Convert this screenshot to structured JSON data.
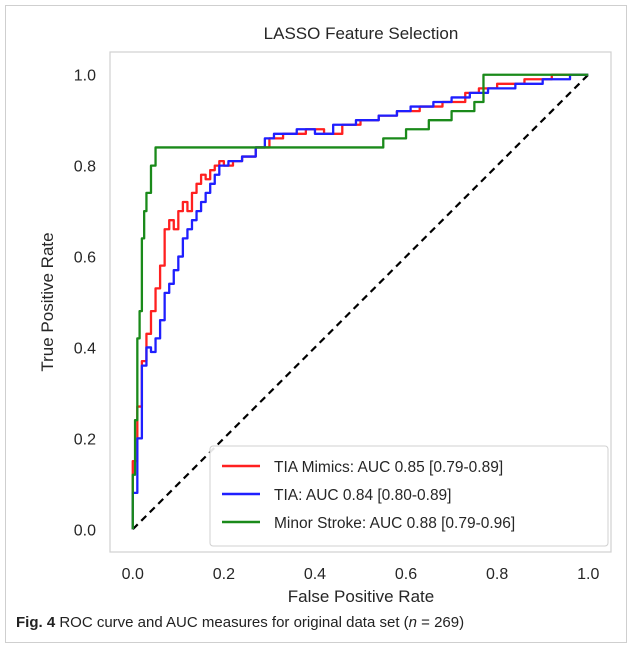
{
  "chart_data": {
    "type": "line",
    "title": "LASSO Feature Selection",
    "xlabel": "False Positive Rate",
    "ylabel": "True Positive Rate",
    "xlim": [
      -0.05,
      1.05
    ],
    "ylim": [
      -0.05,
      1.05
    ],
    "xticks": [
      "0.0",
      "0.2",
      "0.4",
      "0.6",
      "0.8",
      "1.0"
    ],
    "yticks": [
      "0.0",
      "0.2",
      "0.4",
      "0.6",
      "0.8",
      "1.0"
    ],
    "grid": false,
    "legend_position": "lower-right",
    "reference_line": {
      "style": "dashed",
      "color": "#000000",
      "x": [
        0,
        1
      ],
      "y": [
        0,
        1
      ]
    },
    "series": [
      {
        "name": "TIA Mimics: AUC 0.85 [0.79-0.89]",
        "color": "#ff2020",
        "x": [
          0,
          0,
          0.01,
          0.01,
          0.02,
          0.02,
          0.03,
          0.03,
          0.04,
          0.04,
          0.05,
          0.05,
          0.06,
          0.06,
          0.07,
          0.07,
          0.08,
          0.08,
          0.09,
          0.09,
          0.1,
          0.1,
          0.11,
          0.11,
          0.12,
          0.12,
          0.13,
          0.13,
          0.14,
          0.14,
          0.15,
          0.15,
          0.16,
          0.16,
          0.17,
          0.17,
          0.18,
          0.18,
          0.19,
          0.19,
          0.2,
          0.2,
          0.22,
          0.22,
          0.24,
          0.24,
          0.27,
          0.27,
          0.3,
          0.3,
          0.33,
          0.33,
          0.38,
          0.38,
          0.42,
          0.42,
          0.46,
          0.46,
          0.5,
          0.5,
          0.54,
          0.54,
          0.58,
          0.58,
          0.63,
          0.63,
          0.68,
          0.68,
          0.73,
          0.73,
          0.76,
          0.76,
          0.8,
          0.8,
          0.86,
          0.86,
          0.92,
          0.92,
          1.0
        ],
        "y": [
          0,
          0.15,
          0.15,
          0.27,
          0.27,
          0.37,
          0.37,
          0.43,
          0.43,
          0.48,
          0.48,
          0.53,
          0.53,
          0.58,
          0.58,
          0.66,
          0.66,
          0.68,
          0.68,
          0.66,
          0.66,
          0.7,
          0.7,
          0.72,
          0.72,
          0.7,
          0.7,
          0.74,
          0.74,
          0.76,
          0.76,
          0.78,
          0.78,
          0.77,
          0.77,
          0.79,
          0.79,
          0.8,
          0.8,
          0.81,
          0.81,
          0.8,
          0.8,
          0.81,
          0.81,
          0.82,
          0.82,
          0.84,
          0.84,
          0.86,
          0.86,
          0.87,
          0.87,
          0.88,
          0.88,
          0.87,
          0.87,
          0.89,
          0.89,
          0.9,
          0.9,
          0.91,
          0.91,
          0.92,
          0.92,
          0.93,
          0.93,
          0.94,
          0.94,
          0.96,
          0.96,
          0.97,
          0.97,
          0.98,
          0.98,
          0.99,
          0.99,
          1.0,
          1.0
        ]
      },
      {
        "name": "TIA: AUC 0.84 [0.80-0.89]",
        "color": "#1f1fff",
        "x": [
          0,
          0,
          0.01,
          0.01,
          0.02,
          0.02,
          0.03,
          0.03,
          0.04,
          0.04,
          0.05,
          0.05,
          0.06,
          0.06,
          0.07,
          0.07,
          0.08,
          0.08,
          0.09,
          0.09,
          0.1,
          0.1,
          0.11,
          0.11,
          0.12,
          0.12,
          0.13,
          0.13,
          0.14,
          0.14,
          0.15,
          0.15,
          0.16,
          0.16,
          0.17,
          0.17,
          0.18,
          0.18,
          0.19,
          0.19,
          0.21,
          0.21,
          0.24,
          0.24,
          0.27,
          0.27,
          0.29,
          0.29,
          0.31,
          0.31,
          0.36,
          0.36,
          0.4,
          0.4,
          0.44,
          0.44,
          0.49,
          0.49,
          0.54,
          0.54,
          0.58,
          0.58,
          0.61,
          0.61,
          0.66,
          0.66,
          0.7,
          0.7,
          0.74,
          0.74,
          0.78,
          0.78,
          0.84,
          0.84,
          0.9,
          0.9,
          0.96,
          0.96,
          1.0
        ],
        "y": [
          0,
          0.08,
          0.08,
          0.2,
          0.2,
          0.36,
          0.36,
          0.4,
          0.4,
          0.39,
          0.39,
          0.42,
          0.42,
          0.46,
          0.46,
          0.52,
          0.52,
          0.54,
          0.54,
          0.57,
          0.57,
          0.6,
          0.6,
          0.64,
          0.64,
          0.66,
          0.66,
          0.68,
          0.68,
          0.7,
          0.7,
          0.72,
          0.72,
          0.74,
          0.74,
          0.76,
          0.76,
          0.78,
          0.78,
          0.8,
          0.8,
          0.81,
          0.81,
          0.82,
          0.82,
          0.84,
          0.84,
          0.86,
          0.86,
          0.87,
          0.87,
          0.88,
          0.88,
          0.87,
          0.87,
          0.89,
          0.89,
          0.9,
          0.9,
          0.91,
          0.91,
          0.92,
          0.92,
          0.93,
          0.93,
          0.94,
          0.94,
          0.95,
          0.95,
          0.96,
          0.96,
          0.97,
          0.97,
          0.98,
          0.98,
          0.99,
          0.99,
          1.0,
          1.0
        ]
      },
      {
        "name": "Minor Stroke: AUC 0.88 [0.79-0.96]",
        "color": "#1a8a1a",
        "x": [
          0,
          0,
          0.005,
          0.005,
          0.01,
          0.01,
          0.015,
          0.015,
          0.02,
          0.02,
          0.025,
          0.025,
          0.03,
          0.03,
          0.04,
          0.04,
          0.05,
          0.05,
          0.55,
          0.55,
          0.6,
          0.6,
          0.65,
          0.65,
          0.7,
          0.7,
          0.75,
          0.75,
          0.77,
          0.77,
          1.0
        ],
        "y": [
          0,
          0.12,
          0.12,
          0.24,
          0.24,
          0.42,
          0.42,
          0.48,
          0.48,
          0.64,
          0.64,
          0.7,
          0.7,
          0.74,
          0.74,
          0.8,
          0.8,
          0.84,
          0.84,
          0.86,
          0.86,
          0.88,
          0.88,
          0.9,
          0.9,
          0.92,
          0.92,
          0.94,
          0.94,
          1.0,
          1.0
        ]
      }
    ]
  },
  "caption": {
    "label": "Fig. 4",
    "text": " ROC curve and AUC measures for original data set (",
    "n_label": "n",
    "n_value": " = 269)"
  }
}
